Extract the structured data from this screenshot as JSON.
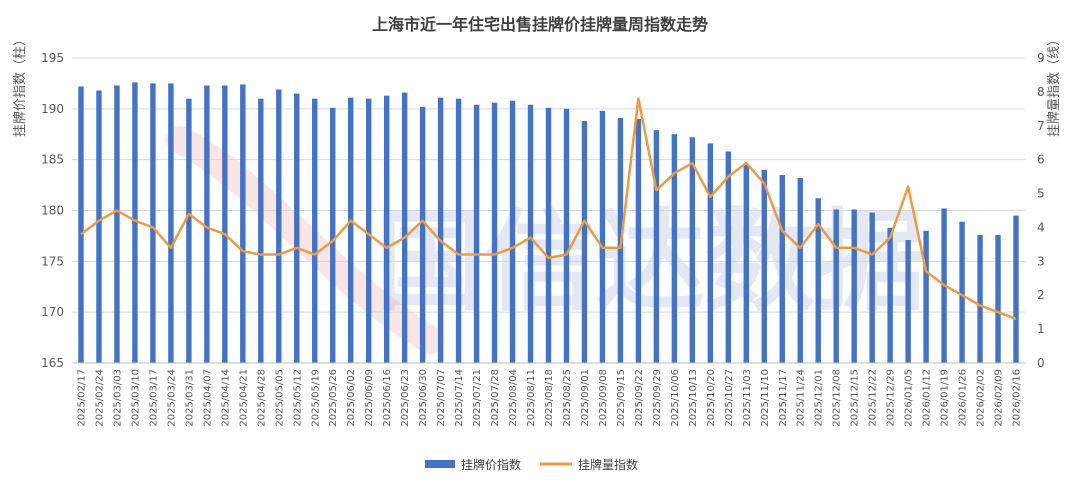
{
  "chart_data": {
    "type": "bar+line",
    "title": "上海市近一年住宅出售挂牌价挂牌量周指数走势",
    "watermark": "国信达数据",
    "y_left": {
      "label": "挂牌价指数（柱）",
      "range": [
        165,
        195
      ],
      "ticks": [
        165,
        170,
        175,
        180,
        185,
        190,
        195
      ]
    },
    "y_right": {
      "label": "挂牌量指数（线）",
      "range": [
        0,
        9
      ],
      "ticks": [
        0,
        1,
        2,
        3,
        4,
        5,
        6,
        7,
        8,
        9
      ]
    },
    "grid": true,
    "legend": {
      "position": "bottom",
      "entries": [
        "挂牌价指数",
        "挂牌量指数"
      ]
    },
    "colors": {
      "bar": "#4472c4",
      "line": "#ed9a45"
    },
    "categories": [
      "2025/02/17",
      "2025/02/24",
      "2025/03/03",
      "2025/03/10",
      "2025/03/17",
      "2025/03/24",
      "2025/03/31",
      "2025/04/07",
      "2025/04/14",
      "2025/04/21",
      "2025/04/28",
      "2025/05/05",
      "2025/05/12",
      "2025/05/19",
      "2025/05/26",
      "2025/06/02",
      "2025/06/09",
      "2025/06/16",
      "2025/06/23",
      "2025/06/30",
      "2025/07/07",
      "2025/07/14",
      "2025/07/21",
      "2025/07/28",
      "2025/08/04",
      "2025/08/11",
      "2025/08/18",
      "2025/08/25",
      "2025/09/01",
      "2025/09/08",
      "2025/09/15",
      "2025/09/22",
      "2025/09/29",
      "2025/10/06",
      "2025/10/13",
      "2025/10/20",
      "2025/10/27",
      "2025/11/03",
      "2025/11/10",
      "2025/11/17",
      "2025/11/24",
      "2025/12/01",
      "2025/12/08",
      "2025/12/15",
      "2025/12/22",
      "2025/12/29",
      "2026/01/05",
      "2026/01/12",
      "2026/01/19",
      "2026/01/26",
      "2026/02/02",
      "2026/02/09",
      "2026/02/16"
    ],
    "series": [
      {
        "name": "挂牌价指数",
        "type": "bar",
        "axis": "left",
        "values": [
          192.2,
          191.8,
          192.3,
          192.6,
          192.5,
          192.5,
          191.0,
          192.3,
          192.3,
          192.4,
          191.0,
          191.9,
          191.5,
          191.0,
          190.1,
          191.1,
          191.0,
          191.3,
          191.6,
          190.2,
          191.1,
          191.0,
          190.4,
          190.6,
          190.8,
          190.4,
          190.1,
          190.0,
          188.8,
          189.8,
          189.1,
          189.0,
          187.9,
          187.5,
          187.2,
          186.6,
          185.8,
          184.6,
          184.0,
          183.5,
          183.2,
          181.2,
          180.1,
          180.1,
          179.8,
          178.3,
          177.1,
          178.0,
          180.2,
          178.9,
          177.6,
          177.6,
          179.5
        ]
      },
      {
        "name": "挂牌量指数",
        "type": "line",
        "axis": "right",
        "values": [
          3.8,
          4.2,
          4.5,
          4.2,
          4.0,
          3.4,
          4.4,
          4.0,
          3.8,
          3.3,
          3.2,
          3.2,
          3.4,
          3.2,
          3.6,
          4.2,
          3.8,
          3.4,
          3.7,
          4.2,
          3.6,
          3.2,
          3.2,
          3.2,
          3.4,
          3.7,
          3.1,
          3.2,
          4.2,
          3.4,
          3.4,
          7.8,
          5.1,
          5.6,
          5.9,
          4.9,
          5.5,
          5.9,
          5.3,
          3.9,
          3.4,
          4.1,
          3.4,
          3.4,
          3.2,
          3.7,
          5.2,
          2.7,
          2.3,
          2.0,
          1.7,
          1.5,
          1.3
        ]
      }
    ]
  }
}
